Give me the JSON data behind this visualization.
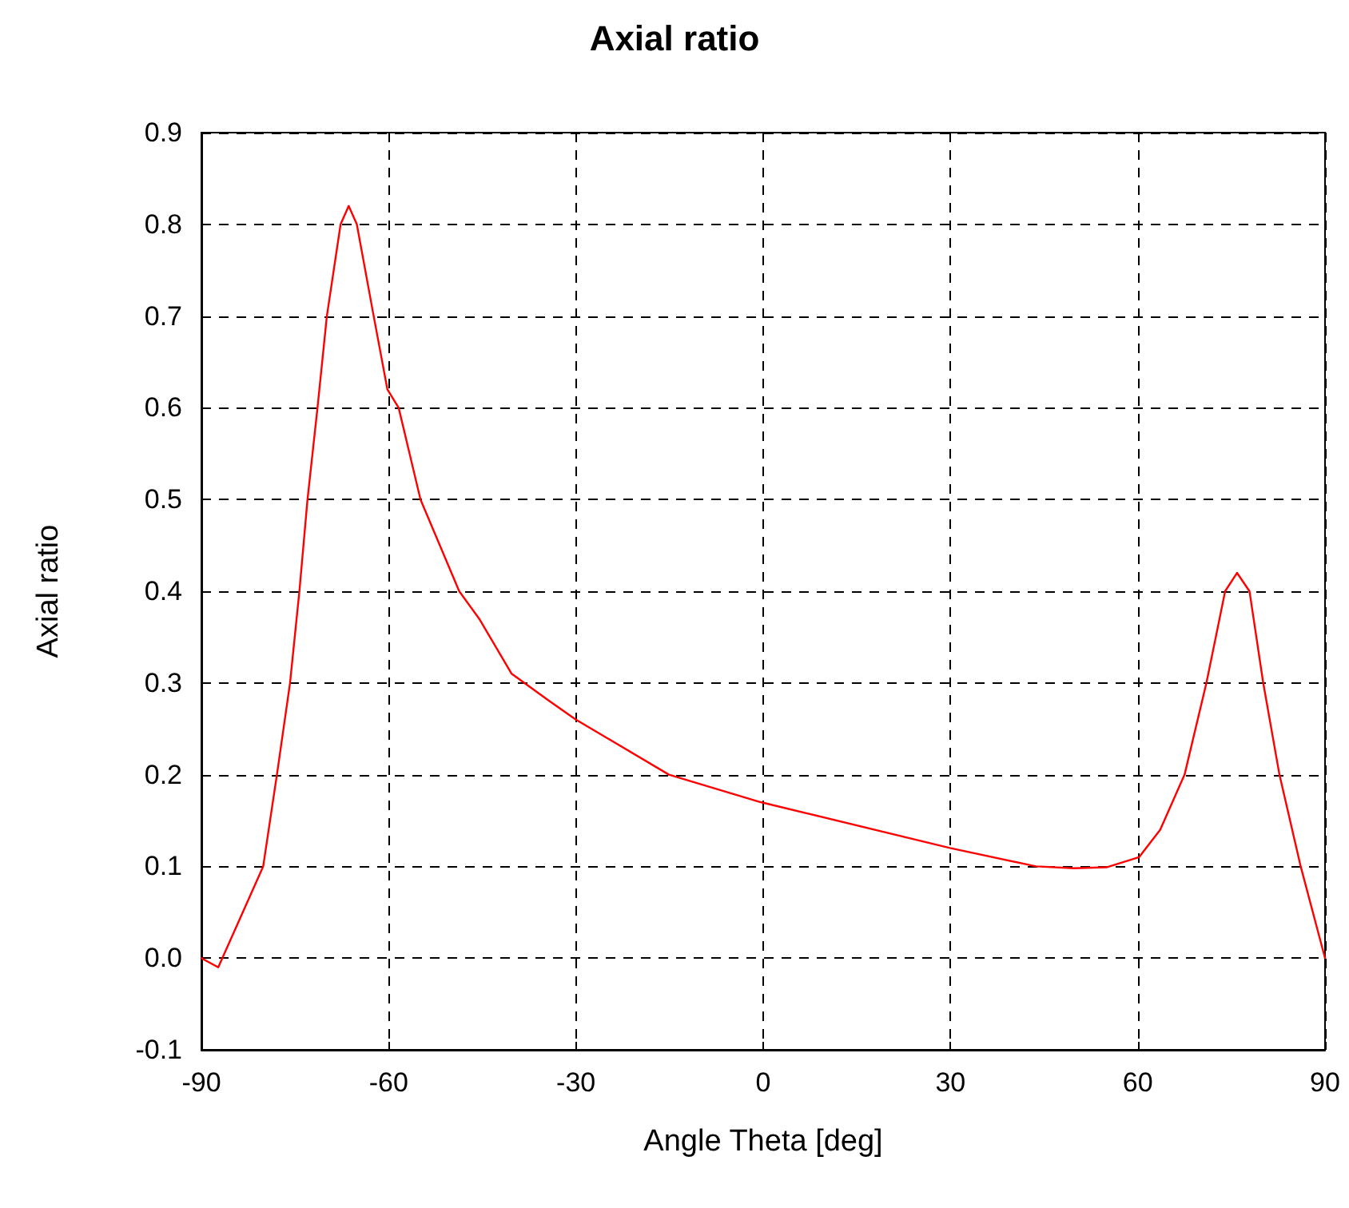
{
  "chart_data": {
    "type": "line",
    "title": "Axial ratio",
    "xlabel": "Angle Theta [deg]",
    "ylabel": "Axial ratio",
    "xlim": [
      -90,
      90
    ],
    "xticks": [
      -90,
      -60,
      -30,
      0,
      30,
      60,
      90
    ],
    "ylim": [
      -0.1,
      0.9
    ],
    "yticks": [
      -0.1,
      {
        "value": 0,
        "label": "0.0"
      },
      0.1,
      0.2,
      0.3,
      0.4,
      0.5,
      0.6,
      0.7,
      0.8,
      0.9
    ],
    "grid": true,
    "marker": "none",
    "line_style": "solid",
    "series": [
      {
        "color": "#ff0000",
        "x": [
          -90,
          -87.3,
          -80.1,
          -77.9,
          -75.8,
          -74.3,
          -73.0,
          -71.4,
          -69.9,
          -67.7,
          -66.4,
          -65.1,
          -62.4,
          -60.2,
          -58.4,
          -54.9,
          -48.7,
          -45.5,
          -40.3,
          -34.2,
          -30.0,
          -15.1,
          -0.4,
          29.9,
          43.7,
          49.8,
          55.0,
          60.2,
          63.6,
          67.5,
          71.0,
          74.0,
          75.9,
          77.9,
          80.1,
          82.7,
          86.1,
          90
        ],
        "values": [
          0.0,
          -0.01,
          0.1,
          0.2,
          0.3,
          0.4,
          0.5,
          0.6,
          0.7,
          0.8,
          0.82,
          0.8,
          0.7,
          0.62,
          0.6,
          0.5,
          0.4,
          0.37,
          0.31,
          0.28,
          0.26,
          0.2,
          0.17,
          0.12,
          0.1,
          0.098,
          0.099,
          0.11,
          0.14,
          0.2,
          0.3,
          0.4,
          0.42,
          0.4,
          0.3,
          0.2,
          0.1,
          0.0
        ]
      }
    ]
  }
}
